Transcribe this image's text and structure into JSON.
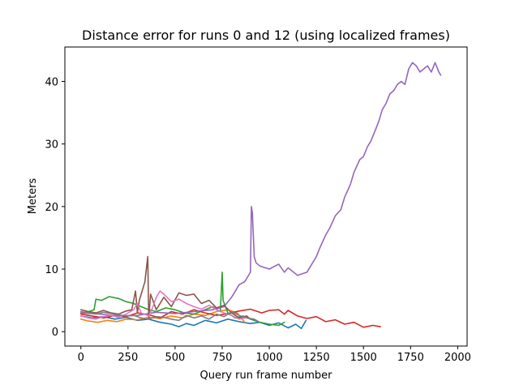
{
  "chart_data": {
    "type": "line",
    "title": "Distance error for runs 0 and 12 (using localized frames)",
    "xlabel": "Query run frame number",
    "ylabel": "Meters",
    "xlim": [
      -85,
      2050
    ],
    "ylim": [
      -2.3,
      45.5
    ],
    "xticks": [
      0,
      250,
      500,
      750,
      1000,
      1250,
      1500,
      1750,
      2000
    ],
    "yticks": [
      0,
      10,
      20,
      30,
      40
    ],
    "xtick_labels": [
      "0",
      "250",
      "500",
      "750",
      "1000",
      "1250",
      "1500",
      "1750",
      "2000"
    ],
    "ytick_labels": [
      "0",
      "10",
      "20",
      "30",
      "40"
    ],
    "grid": false,
    "series": [
      {
        "color": "#1f77b4",
        "x": [
          0,
          60,
          120,
          180,
          240,
          300,
          360,
          420,
          480,
          520,
          560,
          600,
          660,
          720,
          780,
          840,
          900,
          950,
          1000,
          1050,
          1100,
          1140,
          1170,
          1195
        ],
        "y": [
          2.5,
          2.2,
          2.4,
          2.0,
          2.3,
          1.8,
          2.0,
          1.5,
          1.2,
          0.8,
          1.3,
          1.0,
          1.8,
          1.4,
          2.0,
          1.6,
          1.3,
          1.5,
          1.0,
          1.4,
          0.6,
          1.2,
          0.5,
          1.8
        ]
      },
      {
        "color": "#ff7f0e",
        "x": [
          0,
          40,
          90,
          140,
          190,
          240,
          300,
          360,
          420,
          480,
          540,
          600,
          660,
          720,
          780,
          830,
          870
        ],
        "y": [
          2.0,
          1.7,
          1.5,
          1.8,
          1.6,
          2.0,
          1.9,
          2.3,
          2.1,
          2.5,
          2.2,
          2.8,
          2.6,
          3.2,
          3.5,
          3.0,
          1.5
        ]
      },
      {
        "color": "#2ca02c",
        "x": [
          0,
          40,
          70,
          80,
          110,
          150,
          200,
          240,
          280,
          320,
          360,
          400,
          450,
          500,
          550,
          600,
          650,
          700,
          740,
          750,
          755,
          780,
          820,
          860,
          900,
          950,
          1000,
          1050,
          1080
        ],
        "y": [
          3.0,
          3.2,
          3.5,
          5.2,
          5.0,
          5.6,
          5.3,
          4.8,
          4.5,
          4.0,
          3.5,
          3.2,
          3.8,
          3.5,
          3.0,
          2.8,
          3.4,
          4.0,
          3.2,
          9.5,
          5.0,
          3.0,
          2.2,
          2.5,
          2.0,
          1.5,
          1.2,
          1.0,
          1.5
        ]
      },
      {
        "color": "#d62728",
        "x": [
          0,
          60,
          120,
          180,
          240,
          300,
          360,
          420,
          480,
          540,
          600,
          660,
          720,
          780,
          840,
          900,
          960,
          1000,
          1050,
          1080,
          1100,
          1150,
          1200,
          1250,
          1300,
          1350,
          1400,
          1450,
          1500,
          1550,
          1590
        ],
        "y": [
          2.8,
          2.5,
          2.2,
          2.6,
          2.4,
          3.0,
          2.7,
          2.2,
          3.2,
          2.8,
          3.5,
          3.0,
          2.6,
          2.9,
          3.3,
          3.6,
          3.0,
          3.4,
          3.5,
          2.8,
          3.4,
          2.5,
          2.1,
          2.4,
          1.6,
          1.9,
          1.2,
          1.5,
          0.7,
          1.0,
          0.8
        ]
      },
      {
        "color": "#9467bd",
        "x": [
          0,
          100,
          200,
          300,
          400,
          500,
          600,
          700,
          760,
          800,
          840,
          870,
          880,
          900,
          905,
          910,
          920,
          930,
          950,
          1000,
          1050,
          1080,
          1100,
          1150,
          1200,
          1230,
          1250,
          1270,
          1300,
          1320,
          1350,
          1380,
          1400,
          1430,
          1450,
          1480,
          1500,
          1520,
          1540,
          1560,
          1580,
          1600,
          1620,
          1640,
          1660,
          1680,
          1700,
          1720,
          1740,
          1760,
          1780,
          1800,
          1820,
          1840,
          1860,
          1880,
          1900,
          1910
        ],
        "y": [
          3.0,
          2.8,
          2.5,
          2.6,
          3.1,
          2.9,
          3.2,
          3.5,
          4.0,
          5.5,
          7.5,
          8.0,
          8.5,
          9.5,
          20.0,
          19.0,
          12.0,
          11.0,
          10.5,
          10.0,
          10.8,
          9.5,
          10.2,
          9.0,
          9.5,
          11.0,
          12.0,
          13.5,
          15.5,
          16.5,
          18.5,
          19.5,
          21.5,
          23.5,
          25.5,
          27.5,
          28.0,
          29.5,
          30.5,
          32.0,
          33.5,
          35.5,
          36.5,
          38.0,
          38.5,
          39.5,
          40.0,
          39.5,
          42.0,
          43.0,
          42.5,
          41.5,
          42.0,
          42.5,
          41.5,
          43.0,
          41.5,
          41.0
        ]
      },
      {
        "color": "#8c564b",
        "x": [
          0,
          40,
          80,
          120,
          160,
          200,
          240,
          270,
          290,
          300,
          310,
          340,
          355,
          360,
          370,
          400,
          440,
          480,
          520,
          560,
          600,
          640,
          680,
          720,
          760,
          800,
          840,
          880,
          900
        ],
        "y": [
          3.5,
          3.2,
          3.0,
          3.4,
          3.0,
          2.8,
          3.3,
          3.5,
          6.5,
          3.0,
          5.0,
          8.0,
          12.0,
          2.0,
          6.0,
          3.5,
          5.5,
          4.0,
          6.2,
          5.8,
          6.0,
          4.5,
          5.0,
          3.8,
          4.2,
          3.0,
          2.2,
          2.5,
          2.0
        ]
      },
      {
        "color": "#e377c2",
        "x": [
          0,
          40,
          80,
          120,
          160,
          200,
          240,
          280,
          300,
          320,
          360,
          380,
          400,
          420,
          440,
          480,
          520,
          560,
          600,
          640,
          680,
          720,
          760,
          800,
          840,
          870
        ],
        "y": [
          2.5,
          2.2,
          2.0,
          2.4,
          2.6,
          2.3,
          2.8,
          3.5,
          4.5,
          3.0,
          2.5,
          3.8,
          5.5,
          6.5,
          6.0,
          4.8,
          5.2,
          4.5,
          4.0,
          3.6,
          4.2,
          3.5,
          3.0,
          2.6,
          2.0,
          2.2
        ]
      },
      {
        "color": "#7f7f7f",
        "x": [
          0,
          40,
          80,
          120,
          160,
          200,
          240,
          280,
          320,
          360,
          400,
          440,
          480,
          520,
          560,
          600,
          640,
          680,
          720,
          760,
          800,
          840,
          880,
          920,
          950
        ],
        "y": [
          3.2,
          3.0,
          2.8,
          3.1,
          2.9,
          2.7,
          2.5,
          2.6,
          2.2,
          2.0,
          2.4,
          2.3,
          2.0,
          1.8,
          2.6,
          2.2,
          2.5,
          2.0,
          2.8,
          2.4,
          3.2,
          2.6,
          2.2,
          2.0,
          1.5
        ]
      }
    ]
  }
}
